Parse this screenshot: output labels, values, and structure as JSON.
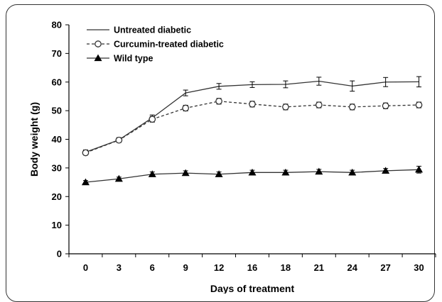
{
  "chart_data": {
    "type": "line",
    "xlabel": "Days of treatment",
    "ylabel": "Body weight  (g)",
    "ylim": [
      0,
      80
    ],
    "y_ticks": [
      "0",
      "10",
      "20",
      "30",
      "40",
      "50",
      "60",
      "70",
      "80"
    ],
    "categories": [
      "0",
      "3",
      "6",
      "9",
      "12",
      "16",
      "18",
      "21",
      "24",
      "27",
      "30"
    ],
    "grid": false,
    "legend_position": "top-left",
    "series": [
      {
        "name": "Untreated diabetic",
        "style": "solid",
        "marker": "none",
        "values": [
          35.5,
          39.8,
          47.5,
          56.2,
          58.5,
          59.1,
          59.2,
          60.3,
          58.6,
          60.0,
          60.1
        ],
        "errors": [
          0.8,
          0.8,
          1.0,
          1.0,
          1.0,
          1.0,
          1.2,
          1.4,
          1.8,
          1.6,
          1.8
        ]
      },
      {
        "name": "Curcumin-treated diabetic",
        "style": "dashed",
        "marker": "open-circle",
        "values": [
          35.3,
          39.7,
          47.0,
          50.9,
          53.3,
          52.3,
          51.3,
          52.0,
          51.3,
          51.7,
          52.0
        ],
        "errors": [
          0.8,
          0.8,
          1.0,
          1.0,
          1.0,
          1.0,
          1.0,
          1.0,
          1.0,
          1.0,
          1.0
        ]
      },
      {
        "name": "Wild type",
        "style": "solid",
        "marker": "filled-triangle",
        "values": [
          25.0,
          26.2,
          27.8,
          28.2,
          27.8,
          28.4,
          28.4,
          28.7,
          28.4,
          29.0,
          29.4
        ],
        "errors": [
          0.6,
          0.6,
          0.8,
          0.8,
          0.8,
          0.8,
          0.8,
          0.8,
          0.8,
          0.8,
          1.2
        ]
      }
    ]
  },
  "colors": {
    "line": "#333333",
    "marker_fill": "#000000",
    "open_marker_fill": "#ffffff"
  }
}
